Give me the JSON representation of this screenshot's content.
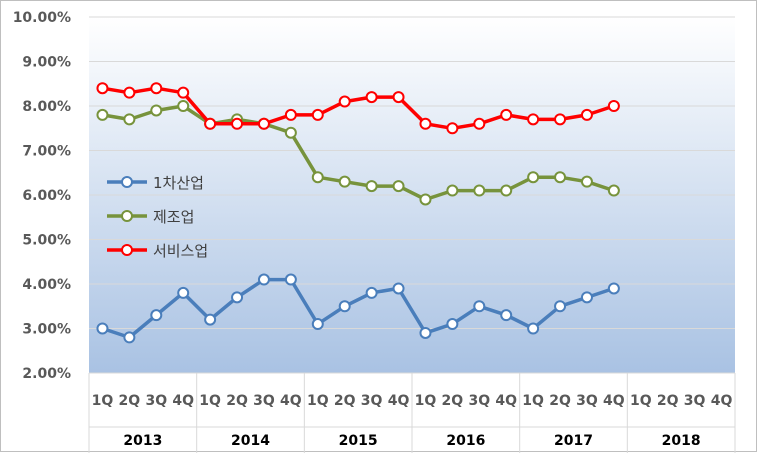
{
  "chart_data": {
    "type": "line",
    "title": "",
    "xlabel": "",
    "ylabel": "",
    "ylim": [
      0.02,
      0.1
    ],
    "y_tick_labels": [
      "2.00%",
      "3.00%",
      "4.00%",
      "5.00%",
      "6.00%",
      "7.00%",
      "8.00%",
      "9.00%",
      "10.00%"
    ],
    "y_ticks": [
      0.02,
      0.03,
      0.04,
      0.05,
      0.06,
      0.07,
      0.08,
      0.09,
      0.1
    ],
    "grid": true,
    "legend_position": "left-middle",
    "years": [
      "2013",
      "2014",
      "2015",
      "2016",
      "2017",
      "2018"
    ],
    "quarters": [
      "1Q",
      "2Q",
      "3Q",
      "4Q"
    ],
    "categories": [
      "2013 1Q",
      "2013 2Q",
      "2013 3Q",
      "2013 4Q",
      "2014 1Q",
      "2014 2Q",
      "2014 3Q",
      "2014 4Q",
      "2015 1Q",
      "2015 2Q",
      "2015 3Q",
      "2015 4Q",
      "2016 1Q",
      "2016 2Q",
      "2016 3Q",
      "2016 4Q",
      "2017 1Q",
      "2017 2Q",
      "2017 3Q",
      "2017 4Q",
      "2018 1Q",
      "2018 2Q",
      "2018 3Q",
      "2018 4Q"
    ],
    "series": [
      {
        "name": "1차산업",
        "color": "#4a7ebb",
        "values": [
          0.03,
          0.028,
          0.033,
          0.038,
          0.032,
          0.037,
          0.041,
          0.041,
          0.031,
          0.035,
          0.038,
          0.039,
          0.029,
          0.031,
          0.035,
          0.033,
          0.03,
          0.035,
          0.037,
          0.039,
          null,
          null,
          null,
          null
        ]
      },
      {
        "name": "제조업",
        "color": "#77933c",
        "values": [
          0.078,
          0.077,
          0.079,
          0.08,
          0.076,
          0.077,
          0.076,
          0.074,
          0.064,
          0.063,
          0.062,
          0.062,
          0.059,
          0.061,
          0.061,
          0.061,
          0.064,
          0.064,
          0.063,
          0.061,
          null,
          null,
          null,
          null
        ]
      },
      {
        "name": "서비스업",
        "color": "#ff0000",
        "values": [
          0.084,
          0.083,
          0.084,
          0.083,
          0.076,
          0.076,
          0.076,
          0.078,
          0.078,
          0.081,
          0.082,
          0.082,
          0.076,
          0.075,
          0.076,
          0.078,
          0.077,
          0.077,
          0.078,
          0.08,
          null,
          null,
          null,
          null
        ]
      }
    ]
  }
}
